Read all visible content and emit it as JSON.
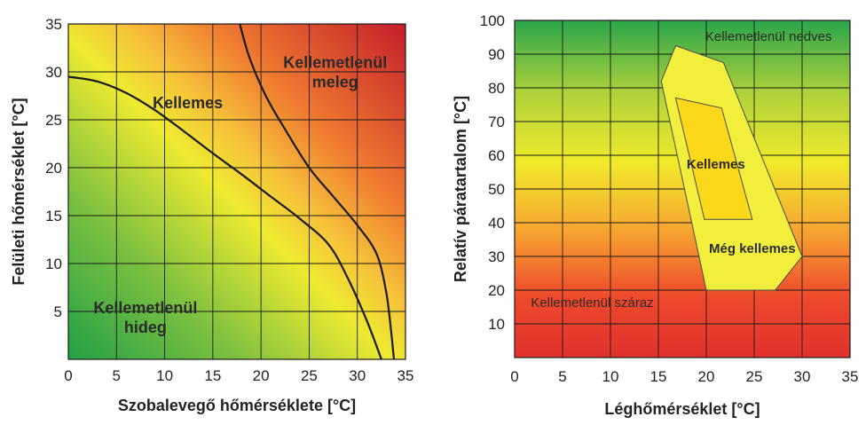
{
  "chart_data": [
    {
      "type": "area",
      "xlabel": "Szobalevegő hőmérséklete [°C]",
      "ylabel": "Felületi hőmérséklet [°C]",
      "xlim": [
        0,
        35
      ],
      "ylim": [
        0,
        35
      ],
      "xticks": [
        "0",
        "5",
        "10",
        "15",
        "20",
        "25",
        "30",
        "35"
      ],
      "yticks": [
        "5",
        "10",
        "15",
        "20",
        "25",
        "30",
        "35"
      ],
      "grid": true,
      "regions": [
        {
          "label": "Kellemetlenül hideg",
          "lines": [
            "Kellemetlenül",
            "hideg"
          ],
          "x": 8,
          "y": 4.8
        },
        {
          "label": "Kellemes",
          "lines": [
            "Kellemes"
          ],
          "x": 12.4,
          "y": 26.2
        },
        {
          "label": "Kellemetlenül meleg",
          "lines": [
            "Kellemetlenül",
            "meleg"
          ],
          "x": 27.7,
          "y": 30.4
        }
      ],
      "series": [
        {
          "values_xy": [
            [
              0,
              29.5
            ],
            [
              3,
              29
            ],
            [
              6,
              27.8
            ],
            [
              9,
              26
            ],
            [
              12,
              23.8
            ],
            [
              15,
              21.5
            ],
            [
              18,
              19.3
            ],
            [
              21,
              17
            ],
            [
              24,
              14.7
            ],
            [
              27,
              12
            ],
            [
              29,
              8.5
            ],
            [
              31,
              4
            ],
            [
              32.5,
              0
            ]
          ]
        },
        {
          "values_xy": [
            [
              17.8,
              35
            ],
            [
              18.8,
              31.5
            ],
            [
              20.5,
              27.5
            ],
            [
              22.5,
              24
            ],
            [
              25,
              20
            ],
            [
              27.5,
              17
            ],
            [
              30,
              14
            ],
            [
              32,
              11
            ],
            [
              33,
              7
            ],
            [
              33.5,
              3
            ],
            [
              33.8,
              0
            ]
          ]
        }
      ],
      "colors": {
        "cold": "#2eaa4a",
        "mid": "#f2ee2e",
        "hot": "#c8202a",
        "line": "#1a1a1a"
      }
    },
    {
      "type": "area",
      "xlabel": "Léghőmérséklet [°C]",
      "ylabel": "Relatív páratartalom [°C]",
      "xlim": [
        0,
        35
      ],
      "ylim": [
        0,
        100
      ],
      "xticks": [
        "0",
        "5",
        "10",
        "15",
        "20",
        "25",
        "30",
        "35"
      ],
      "yticks": [
        "10",
        "20",
        "30",
        "40",
        "50",
        "60",
        "70",
        "80",
        "90",
        "100"
      ],
      "grid": true,
      "regions": [
        {
          "label": "Kellemetlenül nedves",
          "x": 26.5,
          "y": 94
        },
        {
          "label": "Kellemes",
          "x": 21,
          "y": 56
        },
        {
          "label": "Még kellemes",
          "x": 24.8,
          "y": 31
        },
        {
          "label": "Kellemetlenül száraz",
          "x": 8.1,
          "y": 15
        }
      ],
      "polygons": [
        {
          "name": "Még kellemes",
          "points": [
            [
              15.3,
              82
            ],
            [
              16.8,
              92.5
            ],
            [
              21.8,
              87.5
            ],
            [
              30,
              30
            ],
            [
              27.2,
              20
            ],
            [
              20,
              20
            ]
          ]
        },
        {
          "name": "Kellemes",
          "points": [
            [
              16.8,
              77
            ],
            [
              21.6,
              74
            ],
            [
              24.8,
              41
            ],
            [
              19.8,
              41
            ]
          ]
        }
      ],
      "colors": {
        "humid": "#2ea84a",
        "mid": "#f0ea2a",
        "dry": "#e2302a",
        "outer": "#f2ef3c",
        "inner": "#fbd91a",
        "edge": "#4a4a4a"
      }
    }
  ]
}
